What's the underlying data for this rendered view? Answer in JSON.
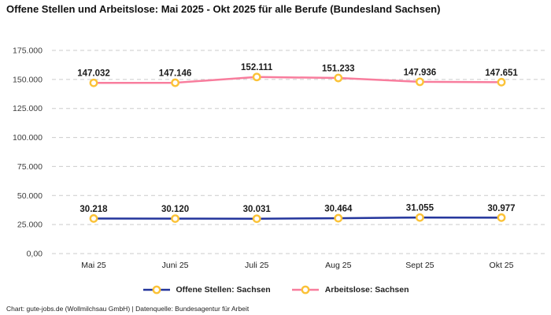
{
  "title": "Offene Stellen und Arbeitslose: Mai 2025 - Okt 2025 für alle Berufe (Bundesland Sachsen)",
  "footer": "Chart: gute-jobs.de (Wollmilchsau GmbH) | Datenquelle: Bundesagentur für Arbeit",
  "colors": {
    "series_open_positions": "#23359c",
    "series_unemployed": "#f87d9d",
    "marker_ring": "#fbc237",
    "marker_fill": "#ffffff",
    "gridline": "#cbcbcb",
    "data_label": "#1b1b1b",
    "axis_text": "#3d3d3d"
  },
  "chart_data": {
    "type": "line",
    "title": "Offene Stellen und Arbeitslose: Mai 2025 - Okt 2025 für alle Berufe (Bundesland Sachsen)",
    "categories": [
      "Mai 25",
      "Juni 25",
      "Juli 25",
      "Aug 25",
      "Sept 25",
      "Okt 25"
    ],
    "series": [
      {
        "name": "Offene Stellen: Sachsen",
        "color": "#23359c",
        "values": [
          30218,
          30120,
          30031,
          30464,
          31055,
          30977
        ],
        "labels": [
          "30.218",
          "30.120",
          "30.031",
          "30.464",
          "31.055",
          "30.977"
        ]
      },
      {
        "name": "Arbeitslose: Sachsen",
        "color": "#f87d9d",
        "values": [
          147032,
          147146,
          152111,
          151233,
          147936,
          147651
        ],
        "labels": [
          "147.032",
          "147.146",
          "152.111",
          "151.233",
          "147.936",
          "147.651"
        ]
      }
    ],
    "y_ticks": [
      {
        "value": 0,
        "label": "0,00"
      },
      {
        "value": 25000,
        "label": "25.000"
      },
      {
        "value": 50000,
        "label": "50.000"
      },
      {
        "value": 75000,
        "label": "75.000"
      },
      {
        "value": 100000,
        "label": "100.000"
      },
      {
        "value": 125000,
        "label": "125.000"
      },
      {
        "value": 150000,
        "label": "150.000"
      },
      {
        "value": 175000,
        "label": "175.000"
      }
    ],
    "ylim": [
      0,
      175000
    ],
    "grid": "horizontal-dashed",
    "legend_position": "bottom",
    "marker": {
      "fill": "#ffffff",
      "stroke": "#fbc237"
    }
  }
}
